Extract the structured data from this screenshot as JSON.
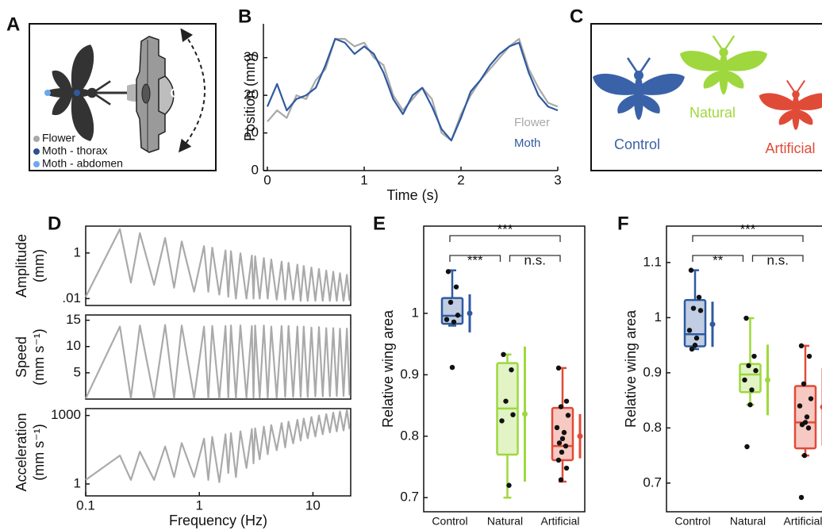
{
  "panel_a": {
    "panel": "A",
    "legend": [
      "Flower",
      "Moth - thorax",
      "Moth - abdomen"
    ]
  },
  "panel_c": {
    "panel": "C",
    "labels": [
      "Control",
      "Natural",
      "Artificial"
    ]
  },
  "chart_data": [
    {
      "type": "line",
      "panel": "B",
      "xlabel": "Time (s)",
      "ylabel": "Position (mm)",
      "x": [
        0,
        0.1,
        0.2,
        0.3,
        0.4,
        0.5,
        0.6,
        0.7,
        0.8,
        0.9,
        1,
        1.1,
        1.2,
        1.3,
        1.4,
        1.5,
        1.6,
        1.7,
        1.8,
        1.9,
        2,
        2.1,
        2.2,
        2.3,
        2.4,
        2.5,
        2.6,
        2.7,
        2.8,
        2.9,
        3
      ],
      "series": [
        {
          "name": "Flower",
          "color": "#a8a8a8",
          "values": [
            13,
            16,
            14,
            20,
            19,
            24,
            27,
            35,
            35,
            33,
            34,
            30,
            28,
            20,
            16,
            19,
            22,
            19,
            10,
            8,
            15,
            20,
            24,
            27,
            30,
            33,
            35,
            27,
            22,
            18,
            17
          ]
        },
        {
          "name": "Moth",
          "color": "#2f5aa0",
          "values": [
            17,
            23,
            16,
            19,
            20,
            22,
            28,
            35,
            34,
            31,
            33,
            31,
            26,
            19,
            15,
            20,
            22,
            17,
            11,
            8,
            14,
            21,
            24,
            28,
            31,
            33,
            34,
            26,
            20,
            17,
            16
          ]
        }
      ],
      "xlim": [
        0,
        3
      ],
      "ylim": [
        0,
        39
      ],
      "xticks": [
        0,
        1,
        2,
        3
      ],
      "yticks": [
        0,
        10,
        20,
        30
      ]
    },
    {
      "type": "line",
      "panel": "D",
      "ylabel": [
        "Amplitude",
        "(mm)"
      ],
      "xscale": "log",
      "yscale": "log",
      "x": [
        0.1,
        0.2,
        0.25,
        0.3,
        0.4,
        0.5,
        0.6,
        0.7,
        0.9,
        1.1,
        1.2,
        1.3,
        1.5,
        1.7,
        1.8,
        1.9,
        2.1,
        2.3,
        2.6,
        2.9,
        3.0,
        3.1,
        3.4,
        3.7,
        4.0,
        4.3,
        4.8,
        5.3,
        5.7,
        6.1,
        6.7,
        7.3,
        7.8,
        8.3,
        9.0,
        9.7,
        10.5,
        11.3,
        12.2,
        13.1,
        14.1,
        15.1,
        16.2,
        17.3,
        18.6,
        19.9,
        21
      ],
      "series": [
        {
          "color": "#aaaaaa",
          "values": [
            0.012,
            11,
            0.05,
            7.4,
            0.04,
            4.5,
            0.03,
            3.2,
            0.02,
            2.0,
            0.02,
            1.7,
            0.015,
            1.3,
            0.012,
            1.2,
            0.01,
            0.97,
            0.01,
            0.77,
            0.01,
            0.72,
            0.01,
            0.6,
            0.01,
            0.52,
            0.009,
            0.42,
            0.009,
            0.37,
            0.009,
            0.31,
            0.008,
            0.27,
            0.008,
            0.23,
            0.008,
            0.2,
            0.008,
            0.17,
            0.008,
            0.15,
            0.008,
            0.13,
            0.008,
            0.11,
            0.008
          ]
        }
      ],
      "xlim": [
        0.1,
        21.5
      ],
      "ylim": [
        0.005,
        15
      ],
      "yticks": [
        {
          "value": 0.01,
          "label": ".01"
        },
        1
      ]
    },
    {
      "type": "line",
      "ylabel": [
        "Speed",
        "(mm s⁻¹)"
      ],
      "xscale": "log",
      "x": [
        0.1,
        0.2,
        0.25,
        0.3,
        0.4,
        0.5,
        0.6,
        0.7,
        0.9,
        1.1,
        1.2,
        1.3,
        1.5,
        1.7,
        1.8,
        1.9,
        2.1,
        2.3,
        2.6,
        2.9,
        3.0,
        3.1,
        3.4,
        3.7,
        4.0,
        4.3,
        4.8,
        5.3,
        5.7,
        6.1,
        6.7,
        7.3,
        7.8,
        8.3,
        9.0,
        9.7,
        10.5,
        11.3,
        12.2,
        13.1,
        14.1,
        15.1,
        16.2,
        17.3,
        18.6,
        19.9,
        21
      ],
      "series": [
        {
          "color": "#aaaaaa",
          "values": [
            0.1,
            13.8,
            0.2,
            14,
            0.2,
            14.1,
            0.2,
            14,
            0.2,
            13.8,
            0.2,
            13.9,
            0.2,
            13.9,
            0.2,
            14,
            0.2,
            14,
            0.3,
            13.9,
            0.3,
            14,
            0.3,
            14,
            0.3,
            13.8,
            0.3,
            13.9,
            0.4,
            13.9,
            0.4,
            13.8,
            0.4,
            13.8,
            0.4,
            13.6,
            0.5,
            13.7,
            0.5,
            13.5,
            0.5,
            13.5,
            0.6,
            13.4,
            0.6,
            13.4,
            0.7
          ]
        }
      ],
      "xlim": [
        0.1,
        21.5
      ],
      "ylim": [
        0,
        16
      ],
      "yticks": [
        5,
        10,
        15
      ]
    },
    {
      "type": "line",
      "ylabel": [
        "Acceleration",
        "(mm s⁻¹)"
      ],
      "xlabel": "Frequency (Hz)",
      "xscale": "log",
      "yscale": "log",
      "x": [
        0.1,
        0.2,
        0.25,
        0.3,
        0.4,
        0.5,
        0.6,
        0.7,
        0.9,
        1.1,
        1.2,
        1.3,
        1.5,
        1.7,
        1.8,
        1.9,
        2.1,
        2.3,
        2.6,
        2.9,
        3.0,
        3.1,
        3.4,
        3.7,
        4.0,
        4.3,
        4.8,
        5.3,
        5.7,
        6.1,
        6.7,
        7.3,
        7.8,
        8.3,
        9.0,
        9.7,
        10.5,
        11.3,
        12.2,
        13.1,
        14.1,
        15.1,
        16.2,
        17.3,
        18.6,
        19.9,
        21
      ],
      "series": [
        {
          "color": "#aaaaaa",
          "values": [
            1.5,
            17.6,
            1.5,
            26,
            1.5,
            44,
            2,
            62,
            2,
            97,
            1.5,
            115,
            1.2,
            150,
            3,
            167,
            2,
            203,
            5,
            255,
            8,
            273,
            12,
            326,
            20,
            379,
            30,
            466,
            40,
            537,
            60,
            642,
            80,
            730,
            100,
            853,
            120,
            994,
            150,
            1150,
            180,
            1330,
            200,
            1520,
            220,
            1750,
            250
          ]
        }
      ],
      "xlim": [
        0.1,
        21.5
      ],
      "ylim": [
        0.3,
        2000
      ],
      "xticks": [
        0.1,
        1,
        10
      ],
      "yticks": [
        1,
        1000
      ]
    },
    {
      "type": "box",
      "panel": "E",
      "ylabel": "Relative wing area",
      "categories": [
        "Control",
        "Natural",
        "Artificial"
      ],
      "boxes": [
        {
          "color": "#2f5aa0",
          "whisker_low": 0.98,
          "q1": 0.983,
          "median": 0.996,
          "q3": 1.025,
          "whisker_high": 1.07,
          "points": [
            1.068,
            1.043,
            1.018,
            0.997,
            0.99,
            0.986,
            0.912
          ],
          "mean": 1.0,
          "sd": 0.031
        },
        {
          "color": "#9ed83e",
          "whisker_low": 0.7,
          "q1": 0.77,
          "median": 0.845,
          "q3": 0.919,
          "whisker_high": 0.933,
          "points": [
            0.933,
            0.908,
            0.857,
            0.835,
            0.825,
            0.72
          ],
          "mean": 0.836,
          "sd": 0.11
        },
        {
          "color": "#e04b37",
          "whisker_low": 0.726,
          "q1": 0.761,
          "median": 0.784,
          "q3": 0.846,
          "whisker_high": 0.911,
          "points": [
            0.911,
            0.857,
            0.848,
            0.834,
            0.814,
            0.806,
            0.796,
            0.789,
            0.784,
            0.774,
            0.761,
            0.748,
            0.729
          ],
          "mean": 0.8,
          "sd": 0.036
        }
      ],
      "annotations": [
        "***",
        "***",
        "n.s."
      ],
      "ylim": [
        0.677,
        1.142
      ],
      "yticks": [
        0.7,
        0.8,
        0.9,
        1
      ]
    },
    {
      "type": "box",
      "panel": "F",
      "ylabel": "Relative wing area",
      "categories": [
        "Control",
        "Natural",
        "Artificial"
      ],
      "boxes": [
        {
          "color": "#2f5aa0",
          "whisker_low": 0.943,
          "q1": 0.948,
          "median": 0.97,
          "q3": 1.032,
          "whisker_high": 1.086,
          "points": [
            1.086,
            1.037,
            1.017,
            1.013,
            0.977,
            0.963,
            0.95,
            0.943
          ],
          "mean": 0.988,
          "sd": 0.041
        },
        {
          "color": "#9ed83e",
          "whisker_low": 0.842,
          "q1": 0.865,
          "median": 0.897,
          "q3": 0.916,
          "whisker_high": 0.999,
          "points": [
            0.999,
            0.93,
            0.913,
            0.904,
            0.887,
            0.869,
            0.842,
            0.766
          ],
          "mean": 0.887,
          "sd": 0.064
        },
        {
          "color": "#e04b37",
          "whisker_low": 0.75,
          "q1": 0.763,
          "median": 0.81,
          "q3": 0.876,
          "whisker_high": 0.949,
          "points": [
            0.949,
            0.93,
            0.88,
            0.853,
            0.84,
            0.82,
            0.81,
            0.806,
            0.8,
            0.75,
            0.674
          ],
          "mean": 0.838,
          "sd": 0.07
        }
      ],
      "annotations": [
        "***",
        "**",
        "n.s."
      ],
      "ylim": [
        0.648,
        1.166
      ],
      "yticks": [
        0.7,
        0.8,
        0.9,
        1,
        1.1
      ]
    }
  ]
}
